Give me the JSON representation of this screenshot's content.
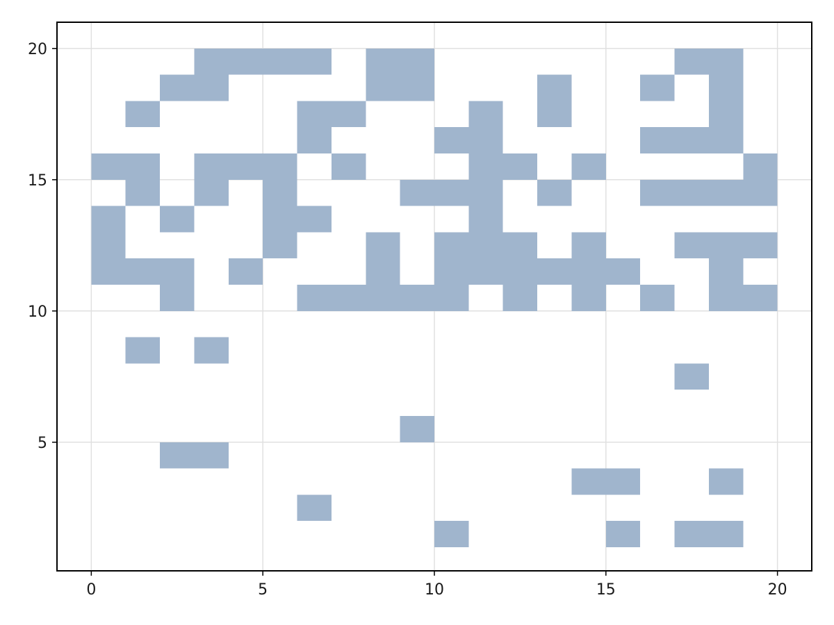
{
  "chart_data": {
    "type": "heatmap",
    "title": "",
    "xlabel": "",
    "ylabel": "",
    "xlim": [
      -1,
      21
    ],
    "ylim": [
      0.1,
      21
    ],
    "x_ticks": [
      0,
      5,
      10,
      15,
      20
    ],
    "y_ticks": [
      5,
      10,
      15,
      20
    ],
    "grid": true,
    "fill_color": "#a0b5cd",
    "grid_color": "#e0e0e0",
    "cell_size": 1,
    "filled_cells": [
      [
        10,
        1
      ],
      [
        15,
        1
      ],
      [
        17,
        1
      ],
      [
        18,
        1
      ],
      [
        6,
        2
      ],
      [
        14,
        3
      ],
      [
        15,
        3
      ],
      [
        18,
        3
      ],
      [
        2,
        4
      ],
      [
        3,
        4
      ],
      [
        9,
        5
      ],
      [
        17,
        7
      ],
      [
        1,
        8
      ],
      [
        3,
        8
      ],
      [
        2,
        10
      ],
      [
        6,
        10
      ],
      [
        7,
        10
      ],
      [
        8,
        10
      ],
      [
        9,
        10
      ],
      [
        10,
        10
      ],
      [
        12,
        10
      ],
      [
        14,
        10
      ],
      [
        16,
        10
      ],
      [
        18,
        10
      ],
      [
        19,
        10
      ],
      [
        0,
        11
      ],
      [
        1,
        11
      ],
      [
        2,
        11
      ],
      [
        4,
        11
      ],
      [
        8,
        11
      ],
      [
        10,
        11
      ],
      [
        11,
        11
      ],
      [
        12,
        11
      ],
      [
        13,
        11
      ],
      [
        14,
        11
      ],
      [
        15,
        11
      ],
      [
        18,
        11
      ],
      [
        0,
        12
      ],
      [
        5,
        12
      ],
      [
        8,
        12
      ],
      [
        10,
        12
      ],
      [
        11,
        12
      ],
      [
        12,
        12
      ],
      [
        14,
        12
      ],
      [
        17,
        12
      ],
      [
        18,
        12
      ],
      [
        19,
        12
      ],
      [
        0,
        13
      ],
      [
        2,
        13
      ],
      [
        5,
        13
      ],
      [
        6,
        13
      ],
      [
        11,
        13
      ],
      [
        1,
        14
      ],
      [
        3,
        14
      ],
      [
        5,
        14
      ],
      [
        9,
        14
      ],
      [
        10,
        14
      ],
      [
        11,
        14
      ],
      [
        13,
        14
      ],
      [
        16,
        14
      ],
      [
        17,
        14
      ],
      [
        18,
        14
      ],
      [
        19,
        14
      ],
      [
        0,
        15
      ],
      [
        1,
        15
      ],
      [
        3,
        15
      ],
      [
        4,
        15
      ],
      [
        5,
        15
      ],
      [
        7,
        15
      ],
      [
        11,
        15
      ],
      [
        12,
        15
      ],
      [
        14,
        15
      ],
      [
        19,
        15
      ],
      [
        6,
        16
      ],
      [
        10,
        16
      ],
      [
        11,
        16
      ],
      [
        16,
        16
      ],
      [
        17,
        16
      ],
      [
        18,
        16
      ],
      [
        1,
        17
      ],
      [
        6,
        17
      ],
      [
        7,
        17
      ],
      [
        11,
        17
      ],
      [
        13,
        17
      ],
      [
        18,
        17
      ],
      [
        2,
        18
      ],
      [
        3,
        18
      ],
      [
        8,
        18
      ],
      [
        9,
        18
      ],
      [
        13,
        18
      ],
      [
        16,
        18
      ],
      [
        18,
        18
      ],
      [
        3,
        19
      ],
      [
        4,
        19
      ],
      [
        5,
        19
      ],
      [
        6,
        19
      ],
      [
        8,
        19
      ],
      [
        9,
        19
      ],
      [
        17,
        19
      ],
      [
        18,
        19
      ]
    ]
  }
}
